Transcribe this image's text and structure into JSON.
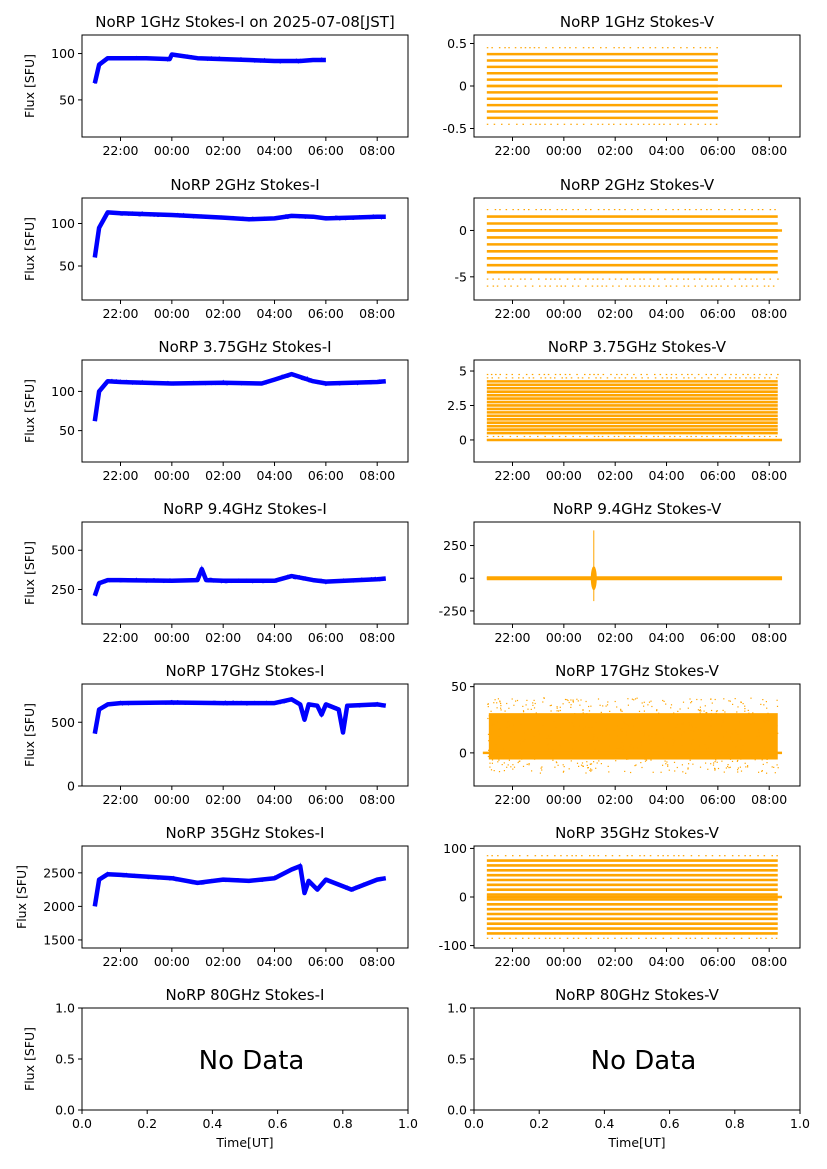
{
  "figure": {
    "x_axis_label": "Time[UT]",
    "y_axis_label": "Flux [SFU]",
    "no_data_text": "No Data",
    "colors": {
      "stokes_i": "#0000ff",
      "stokes_v": "#ffa500"
    }
  },
  "chart_data": [
    {
      "type": "line",
      "title": "NoRP 1GHz Stokes-I on 2025-07-08[JST]",
      "ylabel": "Flux [SFU]",
      "xticks": [
        "22:00",
        "00:00",
        "02:00",
        "04:00",
        "06:00",
        "08:00"
      ],
      "yticks": [
        50,
        100
      ],
      "ylim": [
        10,
        120
      ],
      "series": [
        {
          "x": [
            "21:00",
            "21:10",
            "21:30",
            "22:00",
            "23:00",
            "23:55",
            "00:00",
            "01:00",
            "02:00",
            "03:00",
            "04:00",
            "05:00",
            "05:30",
            "06:00"
          ],
          "y": [
            68,
            88,
            95,
            95,
            95,
            94,
            99,
            95,
            94,
            93,
            92,
            92,
            93,
            93
          ]
        }
      ]
    },
    {
      "type": "scatter",
      "title": "NoRP 1GHz Stokes-V",
      "xticks": [
        "22:00",
        "00:00",
        "02:00",
        "04:00",
        "06:00",
        "08:00"
      ],
      "yticks": [
        -0.5,
        0.0,
        0.5
      ],
      "ylim": [
        -0.6,
        0.6
      ],
      "levels": [
        -0.375,
        -0.3,
        -0.225,
        -0.15,
        -0.075,
        0,
        0.075,
        0.15,
        0.225,
        0.3,
        0.375
      ],
      "sparse_levels": [
        -0.45,
        0.45
      ],
      "x_start": "21:00",
      "x_end": "06:00",
      "zero_line_end": "08:30"
    },
    {
      "type": "line",
      "title": "NoRP 2GHz Stokes-I",
      "ylabel": "Flux [SFU]",
      "xticks": [
        "22:00",
        "00:00",
        "02:00",
        "04:00",
        "06:00",
        "08:00"
      ],
      "yticks": [
        50,
        100
      ],
      "ylim": [
        10,
        130
      ],
      "series": [
        {
          "x": [
            "21:00",
            "21:10",
            "21:30",
            "22:00",
            "00:00",
            "02:00",
            "03:00",
            "04:00",
            "04:40",
            "05:30",
            "06:00",
            "07:00",
            "08:00",
            "08:20"
          ],
          "y": [
            60,
            95,
            113,
            112,
            110,
            107,
            105,
            106,
            109,
            108,
            106,
            107,
            108,
            108
          ]
        }
      ]
    },
    {
      "type": "scatter",
      "title": "NoRP 2GHz Stokes-V",
      "xticks": [
        "22:00",
        "00:00",
        "02:00",
        "04:00",
        "06:00",
        "08:00"
      ],
      "yticks": [
        -5,
        0
      ],
      "ylim": [
        -7.5,
        3.5
      ],
      "levels": [
        -4.5,
        -3.75,
        -3,
        -2.25,
        -1.5,
        -0.75,
        0,
        0.75,
        1.5
      ],
      "sparse_levels": [
        -6,
        -5.25,
        2.25
      ],
      "x_start": "21:00",
      "x_end": "08:20",
      "zero_line_end": "08:30"
    },
    {
      "type": "line",
      "title": "NoRP 3.75GHz Stokes-I",
      "ylabel": "Flux [SFU]",
      "xticks": [
        "22:00",
        "00:00",
        "02:00",
        "04:00",
        "06:00",
        "08:00"
      ],
      "yticks": [
        50,
        100
      ],
      "ylim": [
        10,
        140
      ],
      "series": [
        {
          "x": [
            "21:00",
            "21:10",
            "21:30",
            "22:00",
            "00:00",
            "02:00",
            "03:30",
            "04:00",
            "04:40",
            "05:30",
            "06:00",
            "08:00",
            "08:20"
          ],
          "y": [
            62,
            100,
            113,
            112,
            110,
            111,
            110,
            115,
            122,
            113,
            110,
            112,
            113
          ]
        }
      ]
    },
    {
      "type": "scatter",
      "title": "NoRP 3.75GHz Stokes-V",
      "xticks": [
        "22:00",
        "00:00",
        "02:00",
        "04:00",
        "06:00",
        "08:00"
      ],
      "yticks": [
        0.0,
        2.5,
        5.0
      ],
      "ylim": [
        -1.6,
        5.8
      ],
      "levels": [
        0.5,
        0.75,
        1.0,
        1.25,
        1.5,
        1.75,
        2.0,
        2.25,
        2.5,
        2.75,
        3.0,
        3.25,
        3.5,
        3.75,
        4.0,
        4.25
      ],
      "sparse_levels": [
        0,
        0.25,
        4.5,
        4.75
      ],
      "x_start": "21:00",
      "x_end": "08:20",
      "zero_line_end": "08:30"
    },
    {
      "type": "line",
      "title": "NoRP 9.4GHz Stokes-I",
      "ylabel": "Flux [SFU]",
      "xticks": [
        "22:00",
        "00:00",
        "02:00",
        "04:00",
        "06:00",
        "08:00"
      ],
      "yticks": [
        250,
        500
      ],
      "ylim": [
        30,
        680
      ],
      "series": [
        {
          "x": [
            "21:00",
            "21:10",
            "21:30",
            "22:00",
            "00:00",
            "01:00",
            "01:10",
            "01:20",
            "02:00",
            "04:00",
            "04:40",
            "05:30",
            "06:00",
            "08:00",
            "08:20"
          ],
          "y": [
            210,
            290,
            310,
            310,
            305,
            310,
            380,
            310,
            305,
            305,
            335,
            310,
            300,
            315,
            320
          ]
        }
      ]
    },
    {
      "type": "scatter",
      "title": "NoRP 9.4GHz Stokes-V",
      "xticks": [
        "22:00",
        "00:00",
        "02:00",
        "04:00",
        "06:00",
        "08:00"
      ],
      "yticks": [
        -250,
        0,
        250
      ],
      "ylim": [
        -350,
        430
      ],
      "levels": [
        0
      ],
      "sparse_levels": [],
      "x_start": "21:00",
      "x_end": "08:30",
      "zero_line_end": "08:30"
    },
    {
      "type": "line",
      "title": "NoRP 17GHz Stokes-I",
      "ylabel": "Flux [SFU]",
      "xticks": [
        "22:00",
        "00:00",
        "02:00",
        "04:00",
        "06:00",
        "08:00"
      ],
      "yticks": [
        0,
        500
      ],
      "ylim": [
        0,
        800
      ],
      "series": [
        {
          "x": [
            "21:00",
            "21:10",
            "21:30",
            "22:00",
            "00:00",
            "02:00",
            "04:00",
            "04:40",
            "05:00",
            "05:10",
            "05:20",
            "05:40",
            "05:50",
            "06:00",
            "06:30",
            "06:40",
            "06:50",
            "08:00",
            "08:20"
          ],
          "y": [
            410,
            600,
            640,
            650,
            655,
            650,
            650,
            680,
            640,
            520,
            640,
            630,
            560,
            640,
            600,
            420,
            630,
            640,
            630
          ]
        }
      ]
    },
    {
      "type": "scatter",
      "title": "NoRP 17GHz Stokes-V",
      "xticks": [
        "22:00",
        "00:00",
        "02:00",
        "04:00",
        "06:00",
        "08:00"
      ],
      "yticks": [
        0,
        50
      ],
      "ylim": [
        -25,
        52
      ],
      "band": [
        -5,
        30
      ],
      "band_spread": [
        -15,
        42
      ],
      "x_start": "21:00",
      "x_end": "08:20",
      "zero_line_end": "08:30"
    },
    {
      "type": "line",
      "title": "NoRP 35GHz Stokes-I",
      "ylabel": "Flux [SFU]",
      "xticks": [
        "22:00",
        "00:00",
        "02:00",
        "04:00",
        "06:00",
        "08:00"
      ],
      "yticks": [
        1500,
        2000,
        2500
      ],
      "ylim": [
        1380,
        2900
      ],
      "series": [
        {
          "x": [
            "21:00",
            "21:10",
            "21:30",
            "22:00",
            "00:00",
            "01:00",
            "02:00",
            "03:00",
            "04:00",
            "04:40",
            "05:00",
            "05:10",
            "05:20",
            "05:40",
            "06:00",
            "07:00",
            "08:00",
            "08:20"
          ],
          "y": [
            2000,
            2400,
            2480,
            2470,
            2420,
            2350,
            2400,
            2380,
            2420,
            2550,
            2600,
            2200,
            2380,
            2250,
            2400,
            2250,
            2400,
            2420
          ]
        }
      ]
    },
    {
      "type": "scatter",
      "title": "NoRP 35GHz Stokes-V",
      "xticks": [
        "22:00",
        "00:00",
        "02:00",
        "04:00",
        "06:00",
        "08:00"
      ],
      "yticks": [
        -100,
        0,
        100
      ],
      "ylim": [
        -105,
        105
      ],
      "levels": [
        -75,
        -65,
        -55,
        -45,
        -35,
        -25,
        -15,
        -5,
        5,
        15,
        25,
        35,
        45,
        55,
        65,
        75
      ],
      "sparse_levels": [
        -85,
        85
      ],
      "x_start": "21:00",
      "x_end": "08:20",
      "zero_line_end": "08:30"
    },
    {
      "type": "line",
      "title": "NoRP 80GHz Stokes-I",
      "ylabel": "Flux [SFU]",
      "empty": true,
      "xticks": [
        "0.0",
        "0.2",
        "0.4",
        "0.6",
        "0.8",
        "1.0"
      ],
      "yticks": [
        "0.0",
        "0.5",
        "1.0"
      ],
      "ylim": [
        0,
        1
      ],
      "xlim": [
        0,
        1
      ],
      "xlabel": "Time[UT]"
    },
    {
      "type": "line",
      "title": "NoRP 80GHz Stokes-V",
      "empty": true,
      "xticks": [
        "0.0",
        "0.2",
        "0.4",
        "0.6",
        "0.8",
        "1.0"
      ],
      "yticks": [
        "0.0",
        "0.5",
        "1.0"
      ],
      "ylim": [
        0,
        1
      ],
      "xlim": [
        0,
        1
      ],
      "xlabel": "Time[UT]"
    }
  ]
}
